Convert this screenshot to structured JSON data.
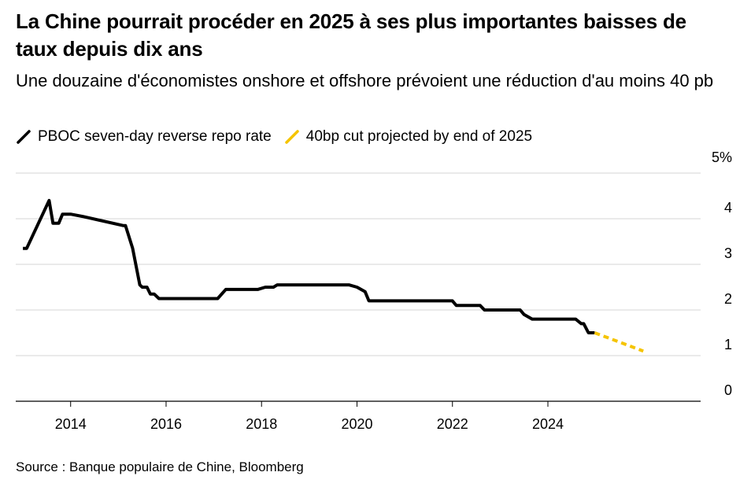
{
  "title": "La Chine pourrait procéder en 2025 à ses plus importantes baisses de taux depuis dix ans",
  "subtitle": "Une douzaine d'économistes onshore et offshore prévoient une réduction d'au moins 40 pb",
  "legend": [
    {
      "label": "PBOC seven-day reverse repo rate",
      "color": "#000000",
      "style": "solid"
    },
    {
      "label": "40bp cut projected by end of 2025",
      "color": "#f5c400",
      "style": "dashed"
    }
  ],
  "source": "Source : Banque populaire de Chine, Bloomberg",
  "chart_data": {
    "type": "line",
    "title": "La Chine pourrait procéder en 2025 à ses plus importantes baisses de taux depuis dix ans",
    "xlabel": "",
    "ylabel": "%",
    "xlim": [
      2012.85,
      2027.2
    ],
    "ylim": [
      0,
      5
    ],
    "x_ticks": [
      2014,
      2016,
      2018,
      2020,
      2022,
      2024
    ],
    "x_tick_labels": [
      "2014",
      "2016",
      "2018",
      "2020",
      "2022",
      "2024"
    ],
    "y_ticks": [
      0,
      1,
      2,
      3,
      4,
      5
    ],
    "y_tick_labels": [
      "0",
      "1",
      "2",
      "3",
      "4",
      "5%"
    ],
    "grid": true,
    "series": [
      {
        "name": "PBOC seven-day reverse repo rate",
        "color": "#000000",
        "style": "solid",
        "x": [
          2013.0,
          2013.08,
          2013.55,
          2013.63,
          2013.75,
          2013.83,
          2014.0,
          2014.25,
          2015.1,
          2015.15,
          2015.3,
          2015.45,
          2015.5,
          2015.6,
          2015.67,
          2015.75,
          2015.85,
          2016.0,
          2017.08,
          2017.25,
          2017.92,
          2018.08,
          2018.25,
          2018.33,
          2019.83,
          2020.0,
          2020.17,
          2020.25,
          2022.0,
          2022.08,
          2022.58,
          2022.67,
          2023.42,
          2023.5,
          2023.67,
          2024.58,
          2024.7,
          2024.75,
          2024.85,
          2024.98
        ],
        "y": [
          3.35,
          3.35,
          4.4,
          3.9,
          3.9,
          4.1,
          4.1,
          4.05,
          3.85,
          3.85,
          3.35,
          2.55,
          2.5,
          2.5,
          2.35,
          2.35,
          2.25,
          2.25,
          2.25,
          2.45,
          2.45,
          2.5,
          2.5,
          2.55,
          2.55,
          2.5,
          2.4,
          2.2,
          2.2,
          2.1,
          2.1,
          2.0,
          2.0,
          1.9,
          1.8,
          1.8,
          1.7,
          1.7,
          1.5,
          1.5
        ]
      },
      {
        "name": "40bp cut projected by end of 2025",
        "color": "#f5c400",
        "style": "dashed",
        "x": [
          2024.98,
          2026.0
        ],
        "y": [
          1.5,
          1.1
        ]
      }
    ]
  }
}
